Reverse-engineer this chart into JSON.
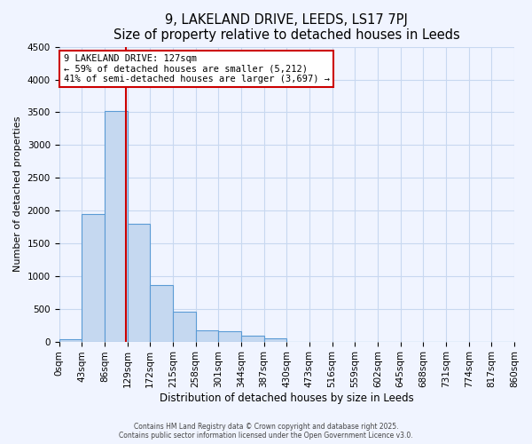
{
  "title": "9, LAKELAND DRIVE, LEEDS, LS17 7PJ",
  "subtitle": "Size of property relative to detached houses in Leeds",
  "xlabel": "Distribution of detached houses by size in Leeds",
  "ylabel": "Number of detached properties",
  "bar_values": [
    40,
    1950,
    3520,
    1800,
    860,
    460,
    170,
    160,
    95,
    55,
    0,
    0,
    0,
    0,
    0,
    0,
    0,
    0,
    0,
    0
  ],
  "bin_edges": [
    0,
    43,
    86,
    129,
    172,
    215,
    258,
    301,
    344,
    387,
    430,
    473,
    516,
    559,
    602,
    645,
    688,
    731,
    774,
    817,
    860
  ],
  "tick_labels": [
    "0sqm",
    "43sqm",
    "86sqm",
    "129sqm",
    "172sqm",
    "215sqm",
    "258sqm",
    "301sqm",
    "344sqm",
    "387sqm",
    "430sqm",
    "473sqm",
    "516sqm",
    "559sqm",
    "602sqm",
    "645sqm",
    "688sqm",
    "731sqm",
    "774sqm",
    "817sqm",
    "860sqm"
  ],
  "bar_color": "#c5d8f0",
  "bar_edge_color": "#5b9bd5",
  "vline_x": 127,
  "vline_color": "#cc0000",
  "ylim": [
    0,
    4500
  ],
  "annotation_text": "9 LAKELAND DRIVE: 127sqm\n← 59% of detached houses are smaller (5,212)\n41% of semi-detached houses are larger (3,697) →",
  "annotation_box_color": "#ffffff",
  "annotation_box_edge": "#cc0000",
  "footer_line1": "Contains HM Land Registry data © Crown copyright and database right 2025.",
  "footer_line2": "Contains public sector information licensed under the Open Government Licence v3.0.",
  "bg_color": "#f0f4ff",
  "grid_color": "#c8d8f0"
}
